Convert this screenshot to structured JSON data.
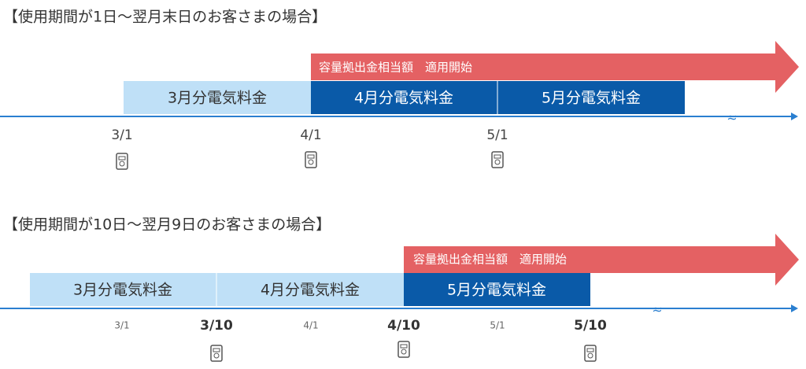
{
  "sections": [
    {
      "title": "【使用期間が1日～翌月末日のお客さまの場合】",
      "arrow_label": "容量拠出金相当額　適用開始",
      "bars": [
        "3月分電気料金",
        "4月分電気料金",
        "5月分電気料金"
      ],
      "ticks": [
        "3/1",
        "4/1",
        "5/1"
      ]
    },
    {
      "title": "【使用期間が10日～翌月9日のお客さまの場合】",
      "arrow_label": "容量拠出金相当額　適用開始",
      "bars": [
        "3月分電気料金",
        "4月分電気料金",
        "5月分電気料金"
      ],
      "ticks": [
        "3/1",
        "3/10",
        "4/1",
        "4/10",
        "5/1",
        "5/10"
      ]
    }
  ]
}
